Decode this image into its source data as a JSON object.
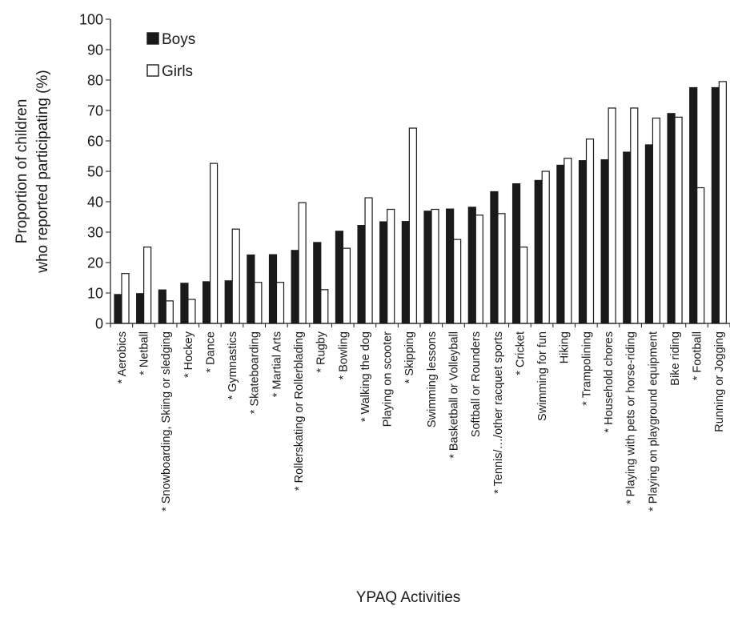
{
  "chart_data": {
    "type": "bar",
    "xlabel": "YPAQ Activities",
    "ylabel_lines": [
      "Proportion of children",
      "who reported participating (%)"
    ],
    "ylim": [
      0,
      100
    ],
    "yticks": [
      0,
      10,
      20,
      30,
      40,
      50,
      60,
      70,
      80,
      90,
      100
    ],
    "grid": false,
    "legend_position": "top-left",
    "categories": [
      "* Aerobics",
      "* Netball",
      "* Snowboarding, Skiing or sledging",
      "* Hockey",
      "* Dance",
      "* Gymnastics",
      "* Skateboarding",
      "* Martial Arts",
      "* Rollerskating or Rollerblading",
      "* Rugby",
      "* Bowling",
      "* Walking the dog",
      "Playing on scooter",
      "* Skipping",
      "Swimming lessons",
      "* Basketball or Volleyball",
      "Softball or Rounders",
      "* Tennis/…/other racquet sports",
      "* Cricket",
      "Swimming for fun",
      "Hiking",
      "* Trampolining",
      "* Household chores",
      "* Playing with pets or horse-riding",
      "* Playing on playground equipment",
      "Bike riding",
      "* Football",
      "Running or Jogging"
    ],
    "series": [
      {
        "name": "Boys",
        "color": "#1a1a1a",
        "values": [
          9.5,
          9.8,
          11,
          13.2,
          13.7,
          14,
          22.5,
          22.6,
          24,
          26.6,
          30.3,
          32.2,
          33.4,
          33.5,
          36.9,
          37.6,
          38.2,
          43.3,
          45.9,
          47,
          52,
          53.5,
          53.8,
          56.3,
          58.7,
          69,
          77.5,
          77.5
        ]
      },
      {
        "name": "Girls",
        "color": "#ffffff",
        "values": [
          16.4,
          25.1,
          7.4,
          7.9,
          52.6,
          31,
          13.5,
          13.5,
          39.7,
          11.1,
          24.7,
          41.3,
          37.5,
          64.2,
          37.5,
          27.6,
          35.6,
          36.1,
          25.1,
          50,
          54.3,
          60.6,
          70.8,
          70.8,
          67.5,
          67.8,
          44.6,
          79.5
        ]
      }
    ]
  }
}
